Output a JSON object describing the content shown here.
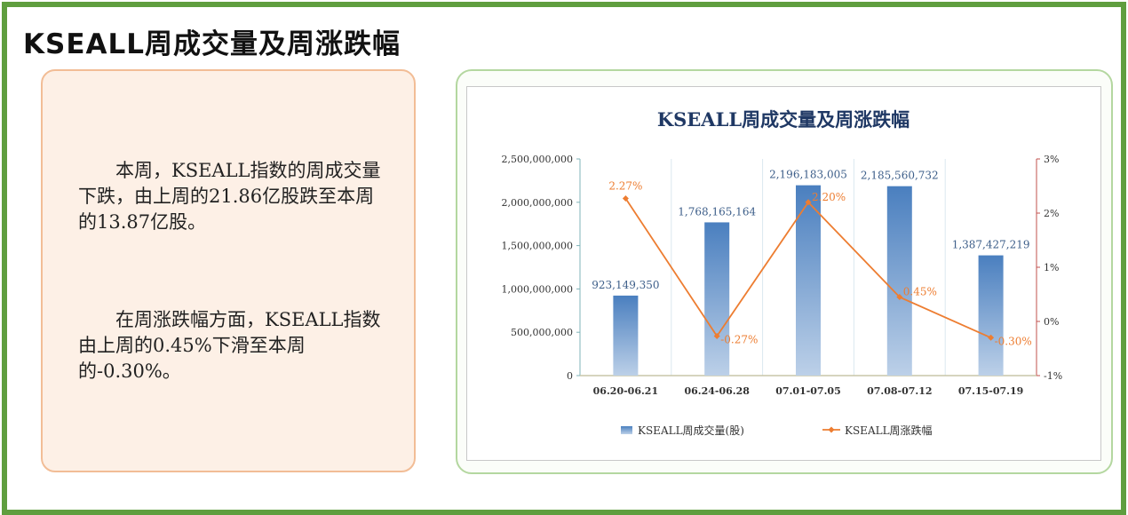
{
  "page_title": "KSEALL周成交量及周涨跌幅",
  "commentary": {
    "paragraph1": "本周，KSEALL指数的周成交量下跌，由上周的21.86亿股跌至本周的13.87亿股。",
    "paragraph2": "在周涨跌幅方面，KSEALL指数由上周的0.45%下滑至本周的-0.30%。"
  },
  "colors": {
    "bar": "#4a7fbf",
    "line": "#ed7d31",
    "frame": "#5f9e3f"
  },
  "chart_data": {
    "type": "bar+line",
    "title": "KSEALL周成交量及周涨跌幅",
    "categories": [
      "06.20-06.21",
      "06.24-06.28",
      "07.01-07.05",
      "07.08-07.12",
      "07.15-07.19"
    ],
    "series": [
      {
        "name": "KSEALL周成交量(股)",
        "type": "bar",
        "axis": "left",
        "values": [
          923149350,
          1768165164,
          2196183005,
          2185560732,
          1387427219
        ],
        "labels": [
          "923,149,350",
          "1,768,165,164",
          "2,196,183,005",
          "2,185,560,732",
          "1,387,427,219"
        ]
      },
      {
        "name": "KSEALL周涨跌幅",
        "type": "line",
        "axis": "right",
        "values": [
          2.27,
          -0.27,
          2.2,
          0.45,
          -0.3
        ],
        "labels": [
          "2.27%",
          "-0.27%",
          "2.20%",
          "0.45%",
          "-0.30%"
        ]
      }
    ],
    "left_axis": {
      "range": [
        0,
        2500000000
      ],
      "ticks": [
        "0",
        "500,000,000",
        "1,000,000,000",
        "1,500,000,000",
        "2,000,000,000",
        "2,500,000,000"
      ]
    },
    "right_axis": {
      "range": [
        -1,
        3
      ],
      "ticks": [
        "-1%",
        "0%",
        "1%",
        "2%",
        "3%"
      ]
    },
    "legend_position": "bottom"
  }
}
